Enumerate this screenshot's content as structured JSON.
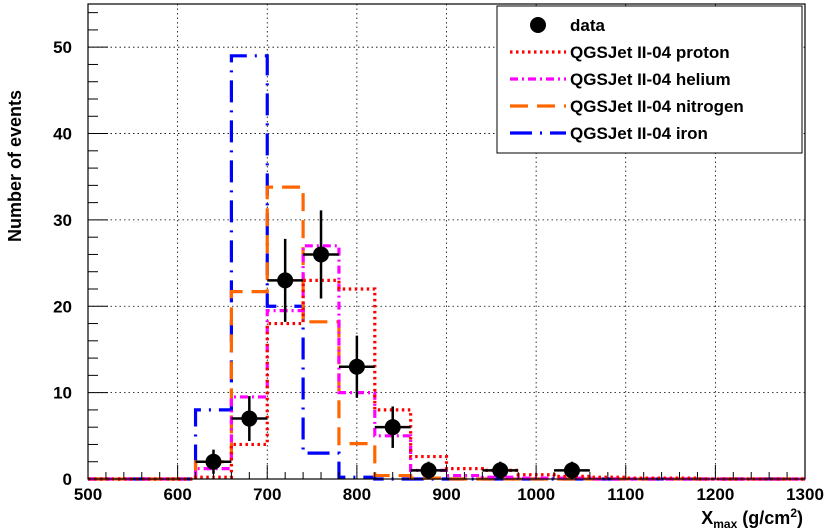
{
  "chart_data": {
    "type": "histogram",
    "xlabel_main": "X",
    "xlabel_sub": "max",
    "xlabel_unit_pre": " (g/cm",
    "xlabel_unit_sup": "2",
    "xlabel_unit_post": ")",
    "ylabel": "Number of events",
    "xlim": [
      500,
      1300
    ],
    "ylim": [
      0,
      55
    ],
    "grid": true,
    "legend_position": "top-right",
    "x_ticks": [
      "500",
      "600",
      "700",
      "800",
      "900",
      "1000",
      "1100",
      "1200",
      "1300"
    ],
    "y_ticks": [
      "0",
      "10",
      "20",
      "30",
      "40",
      "50"
    ],
    "bin_edges": [
      500,
      540,
      580,
      620,
      660,
      700,
      740,
      780,
      820,
      860,
      900,
      940,
      980,
      1020,
      1060,
      1100,
      1140,
      1180,
      1220,
      1260,
      1300
    ],
    "series": [
      {
        "name": "QGSJet II-04 proton",
        "color": "#ff0000",
        "style": "dotted",
        "values": [
          0,
          0,
          0,
          0.2,
          4,
          18,
          23,
          22,
          8,
          2.6,
          1.2,
          1.0,
          0.5,
          0.3,
          0.2,
          0.1,
          0.1,
          0,
          0,
          0
        ]
      },
      {
        "name": "QGSJet II-04 helium",
        "color": "#ff00ff",
        "style": "dash-dot",
        "values": [
          0,
          0,
          0,
          1.2,
          9.5,
          19.5,
          27,
          10,
          5,
          1.0,
          0.4,
          0.2,
          0.1,
          0.1,
          0,
          0,
          0,
          0,
          0,
          0
        ]
      },
      {
        "name": "QGSJet II-04 nitrogen",
        "color": "#ff6600",
        "style": "long-dash",
        "values": [
          0,
          0,
          0,
          2,
          21.7,
          33.8,
          18.2,
          4.1,
          0.4,
          0.1,
          0,
          0,
          0,
          0,
          0,
          0,
          0,
          0,
          0,
          0
        ]
      },
      {
        "name": "QGSJet II-04 iron",
        "color": "#0000ff",
        "style": "dash-dot-long",
        "values": [
          0,
          0,
          0,
          8,
          49,
          20,
          3,
          0.2,
          0,
          0,
          0,
          0,
          0,
          0,
          0,
          0,
          0,
          0,
          0,
          0
        ]
      }
    ],
    "data_points": {
      "name": "data",
      "color": "#000000",
      "points": [
        {
          "x": 640,
          "y": 2,
          "xerr": 20,
          "yerr": 1.4
        },
        {
          "x": 680,
          "y": 7,
          "xerr": 20,
          "yerr": 2.6
        },
        {
          "x": 720,
          "y": 23,
          "xerr": 20,
          "yerr": 4.8
        },
        {
          "x": 760,
          "y": 26,
          "xerr": 20,
          "yerr": 5.1
        },
        {
          "x": 800,
          "y": 13,
          "xerr": 20,
          "yerr": 3.6
        },
        {
          "x": 840,
          "y": 6,
          "xerr": 20,
          "yerr": 2.4
        },
        {
          "x": 880,
          "y": 1,
          "xerr": 20,
          "yerr": 1
        },
        {
          "x": 960,
          "y": 1,
          "xerr": 20,
          "yerr": 1
        },
        {
          "x": 1040,
          "y": 1,
          "xerr": 20,
          "yerr": 1
        }
      ]
    }
  }
}
